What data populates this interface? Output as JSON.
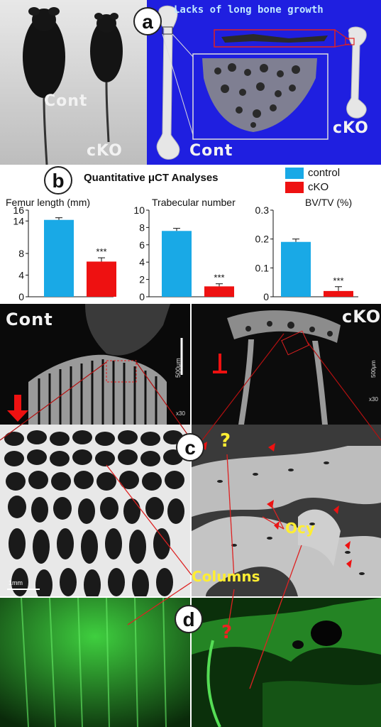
{
  "panel_a": {
    "label": "a",
    "photo_labels": [
      "Cont",
      "cKO"
    ],
    "microct_title": "Lacks of long bone growth",
    "microct_labels": [
      "Cont",
      "cKO"
    ],
    "colors": {
      "background_blue": "#1f1fe0",
      "highlight_red": "#e02020"
    }
  },
  "panel_b": {
    "label": "b",
    "title": "Quantitative μCT Analyses",
    "legend": [
      {
        "name": "control",
        "color": "#19a9e6"
      },
      {
        "name": "cKO",
        "color": "#ee1111"
      }
    ],
    "significance": "***",
    "chart_data": [
      {
        "type": "bar",
        "title": "Femur length (mm)",
        "categories": [
          "control",
          "cKO"
        ],
        "values": [
          14.2,
          6.5
        ],
        "error": [
          0.4,
          0.7
        ],
        "ylim": [
          0,
          16
        ],
        "yticks": [
          "0",
          "4",
          "8",
          "14",
          "16"
        ],
        "ytick_values": [
          0,
          4,
          8,
          14,
          16
        ]
      },
      {
        "type": "bar",
        "title": "Trabecular number",
        "categories": [
          "control",
          "cKO"
        ],
        "values": [
          7.6,
          1.2
        ],
        "error": [
          0.3,
          0.3
        ],
        "ylim": [
          0,
          10
        ],
        "yticks": [
          "0",
          "2",
          "4",
          "6",
          "8",
          "10"
        ],
        "ytick_values": [
          0,
          2,
          4,
          6,
          8,
          10
        ]
      },
      {
        "type": "bar",
        "title": "BV/TV (%)",
        "categories": [
          "control",
          "cKO"
        ],
        "values": [
          0.19,
          0.02
        ],
        "error": [
          0.01,
          0.015
        ],
        "ylim": [
          0,
          0.3
        ],
        "yticks": [
          "0",
          "0.1",
          "0.2",
          "0.3"
        ],
        "ytick_values": [
          0,
          0.1,
          0.2,
          0.3
        ]
      }
    ]
  },
  "panel_c": {
    "label": "c",
    "left_title": "Cont",
    "right_title": "cKO",
    "scale_top": "500μm",
    "mag": "x30",
    "scale_bottom": "1mm",
    "question": "?",
    "columns_label": "Columns",
    "ocy_label": "Ocy"
  },
  "panel_d": {
    "label": "d",
    "question": "?"
  }
}
